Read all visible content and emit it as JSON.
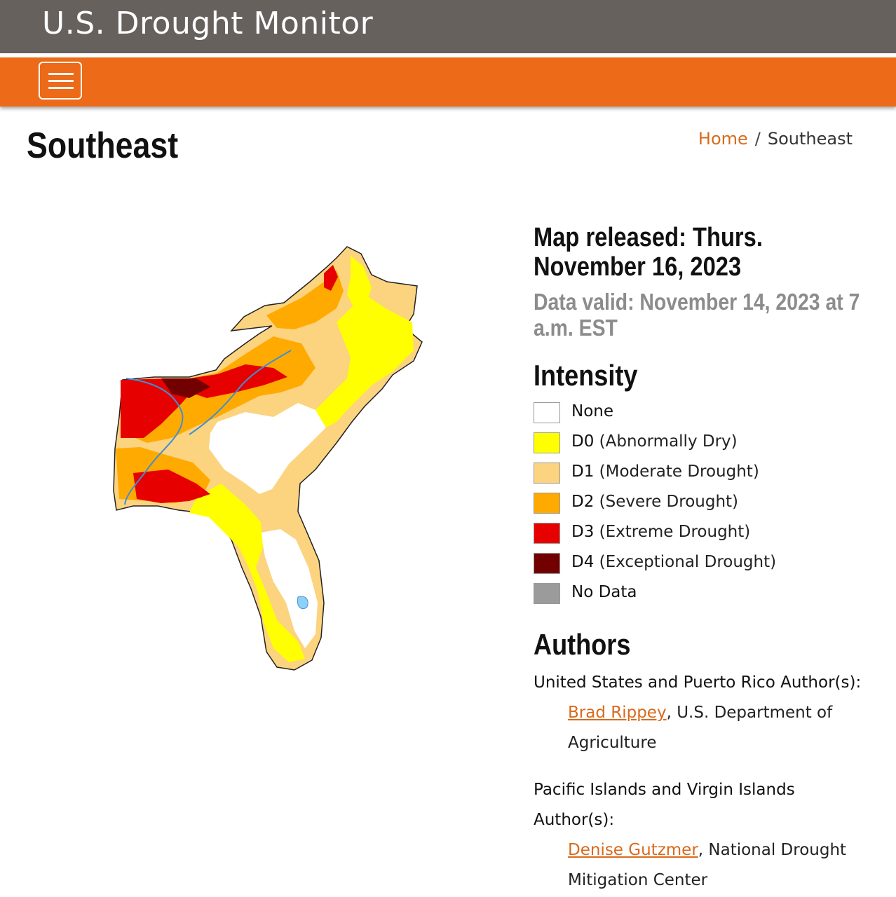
{
  "header": {
    "site_title": "U.S. Drought Monitor"
  },
  "nav": {
    "menu_icon": "hamburger-menu-icon"
  },
  "page": {
    "title": "Southeast"
  },
  "breadcrumb": {
    "home": "Home",
    "separator": "/",
    "current": "Southeast"
  },
  "map_info": {
    "released": "Map released: Thurs. November 16, 2023",
    "valid": "Data valid: November 14, 2023 at 7 a.m. EST"
  },
  "intensity": {
    "heading": "Intensity",
    "items": [
      {
        "code": "",
        "label": "None",
        "color": "#ffffff"
      },
      {
        "code": "D0",
        "label": "(Abnormally Dry)",
        "color": "#ffff00"
      },
      {
        "code": "D1",
        "label": "(Moderate Drought)",
        "color": "#fcd37f"
      },
      {
        "code": "D2",
        "label": "(Severe Drought)",
        "color": "#ffaa00"
      },
      {
        "code": "D3",
        "label": "(Extreme Drought)",
        "color": "#e60000"
      },
      {
        "code": "D4",
        "label": "(Exceptional Drought)",
        "color": "#730000"
      },
      {
        "code": "",
        "label": "No Data",
        "color": "#9b9b9b"
      }
    ]
  },
  "authors": {
    "heading": "Authors",
    "us_label": "United States and Puerto Rico Author(s):",
    "us_name": "Brad Rippey",
    "us_org_1": ", U.S. Department of",
    "us_org_2": "Agriculture",
    "pi_label_1": "Pacific Islands and Virgin Islands",
    "pi_label_2": "Author(s):",
    "pi_name": "Denise Gutzmer",
    "pi_org_1": ", National Drought",
    "pi_org_2": "Mitigation Center"
  },
  "colors": {
    "header_bg": "#67615d",
    "nav_bg": "#ec6a18",
    "link": "#d86a1c"
  }
}
